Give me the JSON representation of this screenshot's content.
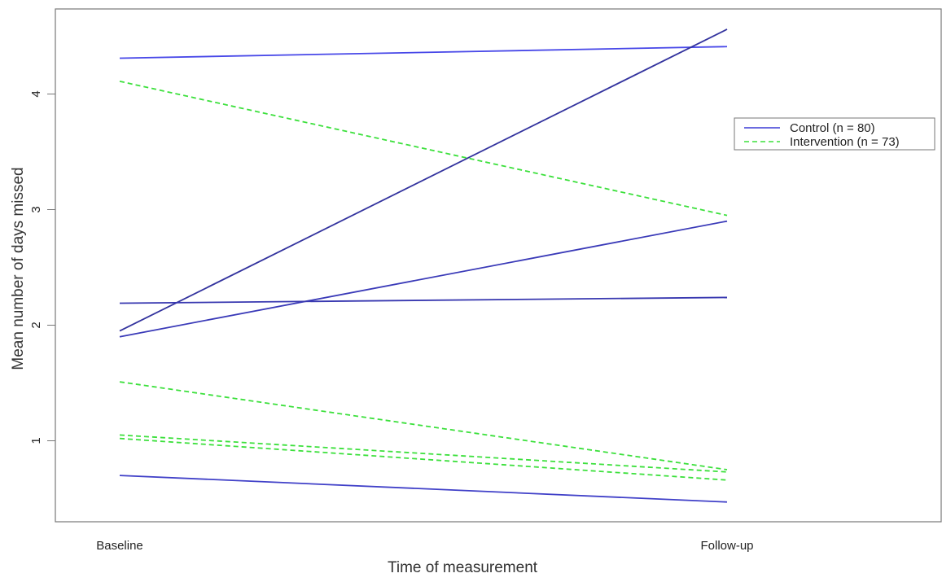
{
  "chart_data": {
    "type": "line",
    "xlabel": "Time of measurement",
    "ylabel": "Mean number of days missed",
    "categories": [
      "Baseline",
      "Follow-up"
    ],
    "ylim": [
      0.3,
      4.7
    ],
    "yticks": [
      1,
      2,
      3,
      4
    ],
    "grid": false,
    "legend_position": "right",
    "legend": [
      {
        "label": "Control (n = 80)",
        "color": "#3b3bd6",
        "dash": "solid"
      },
      {
        "label": "Intervention (n = 73)",
        "color": "#3ce03c",
        "dash": "dashed"
      }
    ],
    "series": [
      {
        "group": "Control (n = 80)",
        "values": [
          4.31,
          4.41
        ],
        "color": "#4848e8"
      },
      {
        "group": "Control (n = 80)",
        "values": [
          1.95,
          4.56
        ],
        "color": "#33339e"
      },
      {
        "group": "Control (n = 80)",
        "values": [
          1.9,
          2.9
        ],
        "color": "#3a3ab8"
      },
      {
        "group": "Control (n = 80)",
        "values": [
          2.19,
          2.24
        ],
        "color": "#3838b0"
      },
      {
        "group": "Control (n = 80)",
        "values": [
          0.7,
          0.47
        ],
        "color": "#4040c8"
      },
      {
        "group": "Intervention (n = 73)",
        "values": [
          4.11,
          2.95
        ],
        "color": "#3ce03c"
      },
      {
        "group": "Intervention (n = 73)",
        "values": [
          1.51,
          0.75
        ],
        "color": "#3ce03c"
      },
      {
        "group": "Intervention (n = 73)",
        "values": [
          1.05,
          0.73
        ],
        "color": "#3ce03c"
      },
      {
        "group": "Intervention (n = 73)",
        "values": [
          1.02,
          0.66
        ],
        "color": "#3ce03c"
      }
    ]
  }
}
